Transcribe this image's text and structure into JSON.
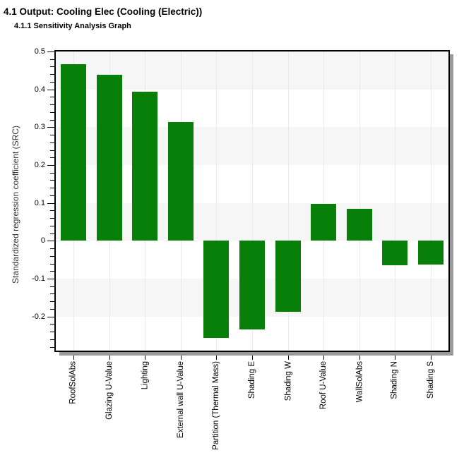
{
  "page": {
    "title": "4.1 Output: Cooling Elec (Cooling (Electric))",
    "subtitle": "4.1.1 Sensitivity Analysis Graph"
  },
  "chart_data": {
    "type": "bar",
    "title": "4.1.1 Sensitivity Analysis Graph",
    "xlabel": "",
    "ylabel": "Standardized regression coefficient (SRC)",
    "categories": [
      "RoofSolAbs",
      "Glazing U-Value",
      "Lighting",
      "External wall U-Value",
      "Partition (Thermal Mass)",
      "Shading E",
      "Shading W",
      "Roof U-Value",
      "WallSolAbs",
      "Shading N",
      "Shading S"
    ],
    "values": [
      0.467,
      0.439,
      0.394,
      0.314,
      -0.257,
      -0.234,
      -0.188,
      0.097,
      0.084,
      -0.065,
      -0.062
    ],
    "ylim": [
      -0.29,
      0.5
    ],
    "yticks": [
      0.5,
      0.4,
      0.3,
      0.2,
      0.1,
      0,
      -0.1,
      -0.2
    ],
    "ytick_step": 0.1,
    "minor_tick_step": 0.02,
    "legend": "none",
    "grid": {
      "vertical_gridlines": "at category centers",
      "horizontal_bands": "alternating shaded bands every 0.1 starting gray at top"
    },
    "style": {
      "bar_color": "#087f08",
      "band_color": "#f6f6f6",
      "gridline_color": "#eaeaea",
      "shadow_color": "#9a9a9a",
      "border_color": "#000000"
    }
  }
}
